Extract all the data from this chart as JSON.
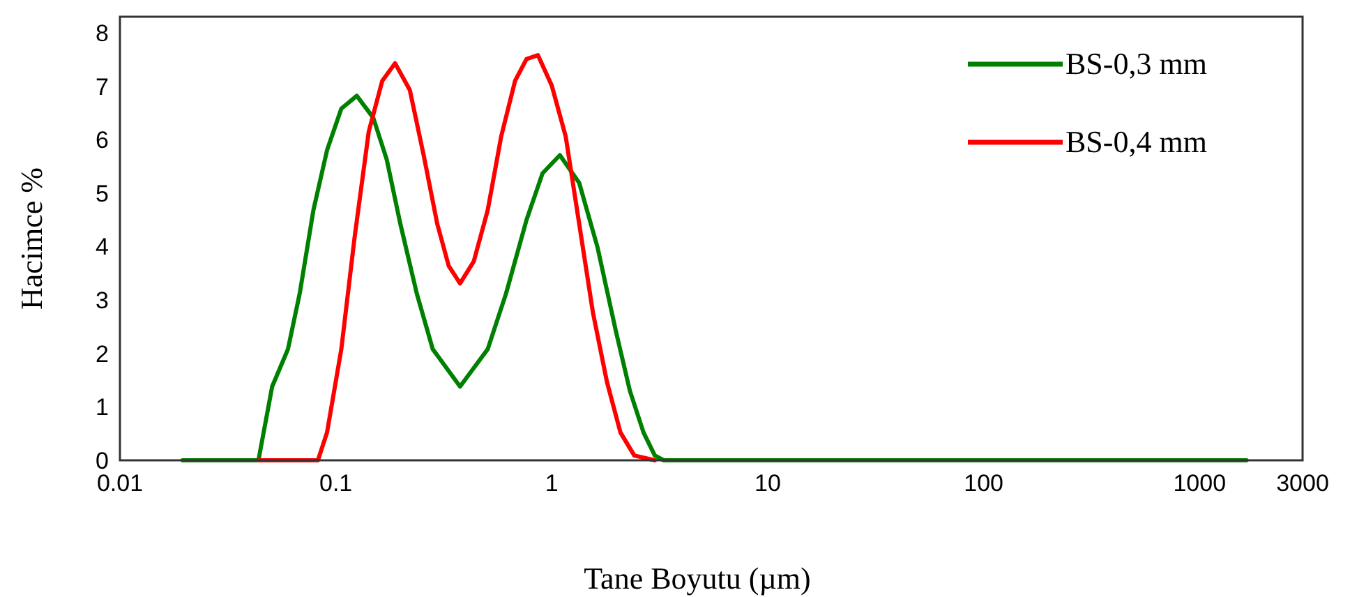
{
  "chart_data": {
    "type": "line",
    "xlabel": "Tane Boyutu (µm)",
    "ylabel": "Hacimce %",
    "log": "x",
    "xlim": [
      0.01,
      3000
    ],
    "xticks": [
      0.01,
      0.1,
      1,
      10,
      100,
      1000,
      3000
    ],
    "ylim": [
      0,
      8.3
    ],
    "yticks": [
      0,
      1,
      2,
      3,
      4,
      5,
      6,
      7,
      8
    ],
    "legend": "top right",
    "grid": false,
    "series": [
      {
        "name": "BS-0,3 mm",
        "color": "#008000",
        "x": [
          0.0195,
          0.0438,
          0.0507,
          0.06,
          0.068,
          0.0787,
          0.091,
          0.106,
          0.125,
          0.149,
          0.172,
          0.199,
          0.237,
          0.281,
          0.376,
          0.505,
          0.614,
          0.764,
          0.906,
          1.09,
          1.34,
          1.63,
          1.98,
          2.3,
          2.66,
          3.0,
          3.3,
          1650
        ],
        "values": [
          0,
          0,
          1.38,
          2.08,
          3.12,
          4.68,
          5.8,
          6.58,
          6.82,
          6.41,
          5.63,
          4.42,
          3.12,
          2.08,
          1.38,
          2.08,
          3.12,
          4.5,
          5.37,
          5.71,
          5.19,
          3.98,
          2.42,
          1.3,
          0.52,
          0.09,
          0,
          0
        ]
      },
      {
        "name": "BS-0,4 mm",
        "color": "#ff0000",
        "x": [
          0.044,
          0.0826,
          0.091,
          0.106,
          0.122,
          0.142,
          0.164,
          0.188,
          0.22,
          0.255,
          0.295,
          0.333,
          0.376,
          0.435,
          0.505,
          0.583,
          0.676,
          0.764,
          0.863,
          1.0,
          1.16,
          1.34,
          1.55,
          1.8,
          2.08,
          2.41,
          3.0
        ],
        "values": [
          0,
          0,
          0.52,
          2.08,
          4.16,
          6.15,
          7.1,
          7.43,
          6.93,
          5.71,
          4.42,
          3.64,
          3.31,
          3.72,
          4.68,
          6.06,
          7.1,
          7.51,
          7.58,
          7.01,
          6.06,
          4.42,
          2.77,
          1.47,
          0.52,
          0.09,
          0
        ]
      }
    ]
  }
}
